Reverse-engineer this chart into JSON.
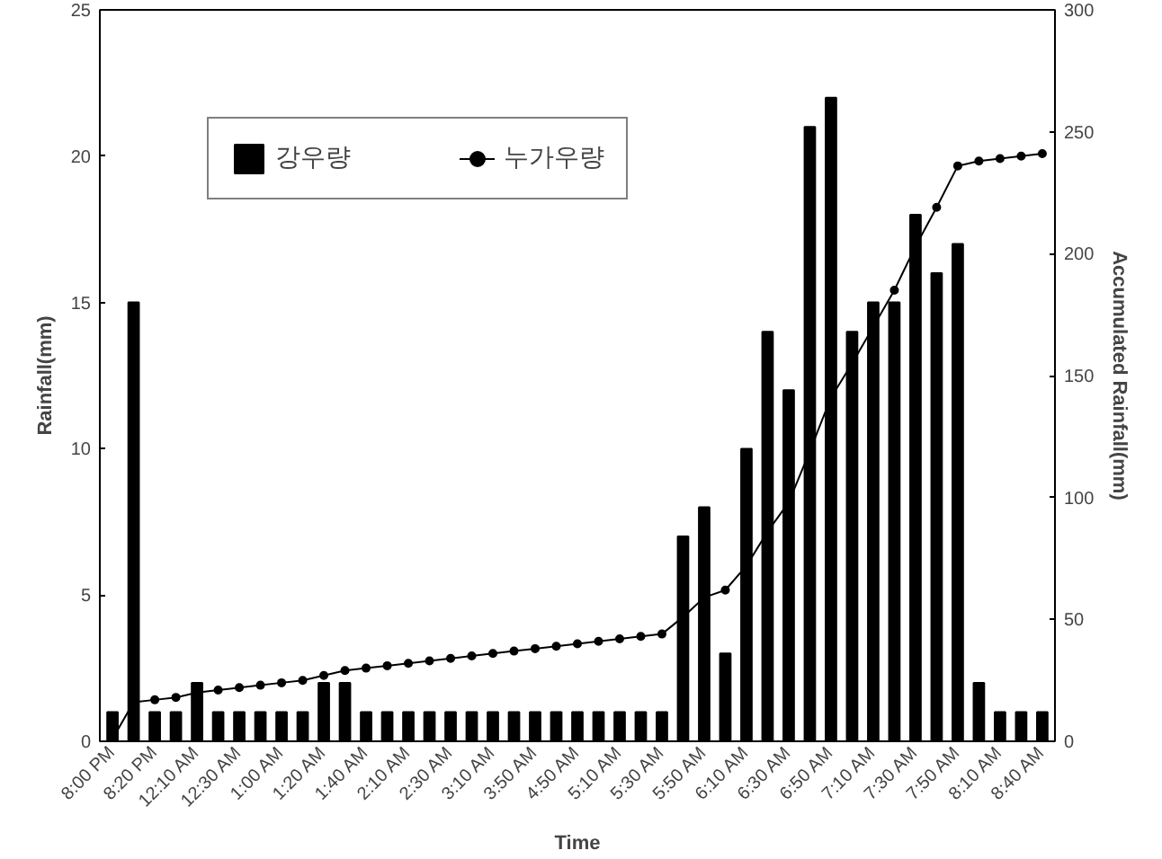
{
  "chart_data": {
    "type": "bar",
    "xlabel": "Time",
    "ylabel": "Rainfall(mm)",
    "y2label": "Accumulated Rainfall(mm)",
    "categories": [
      "8:00 PM",
      null,
      "8:20 PM",
      null,
      "12:10 AM",
      null,
      "12:30 AM",
      null,
      "1:00 AM",
      null,
      "1:20 AM",
      null,
      "1:40 AM",
      null,
      "2:10 AM",
      null,
      "2:30 AM",
      null,
      "3:10 AM",
      null,
      "3:50 AM",
      null,
      "4:50 AM",
      null,
      "5:10 AM",
      null,
      "5:30 AM",
      null,
      "5:50 AM",
      null,
      "6:10 AM",
      null,
      "6:30 AM",
      null,
      "6:50 AM",
      null,
      "7:10 AM",
      null,
      "7:30 AM",
      null,
      "7:50 AM",
      null,
      "8:10 AM",
      null,
      "8:40 AM"
    ],
    "series": [
      {
        "name": "강우량",
        "color": "#000000",
        "values": [
          1,
          15,
          1,
          1,
          2,
          1,
          1,
          1,
          1,
          1,
          2,
          2,
          1,
          1,
          1,
          1,
          1,
          1,
          1,
          1,
          1,
          1,
          1,
          1,
          1,
          1,
          1,
          7,
          8,
          3,
          10,
          14,
          12,
          21,
          22,
          14,
          15,
          15,
          18,
          16,
          17,
          2,
          1,
          1,
          1
        ]
      },
      {
        "name": "누가우량",
        "type": "line",
        "axis": "y2",
        "color": "#000000",
        "marker": "circle",
        "values": [
          1,
          16,
          17,
          18,
          20,
          21,
          22,
          23,
          24,
          25,
          27,
          29,
          30,
          31,
          32,
          33,
          34,
          35,
          36,
          37,
          38,
          39,
          40,
          41,
          42,
          43,
          44,
          51,
          59,
          62,
          72,
          86,
          98,
          119,
          141,
          155,
          170,
          185,
          203,
          219,
          236,
          238,
          239,
          240,
          241
        ]
      }
    ],
    "ylim": [
      0,
      25
    ],
    "yticks": [
      0,
      5,
      10,
      15,
      20,
      25
    ],
    "y2lim": [
      0,
      300
    ],
    "y2ticks": [
      0,
      50,
      100,
      150,
      200,
      250,
      300
    ],
    "grid": false,
    "legend": "top left"
  }
}
